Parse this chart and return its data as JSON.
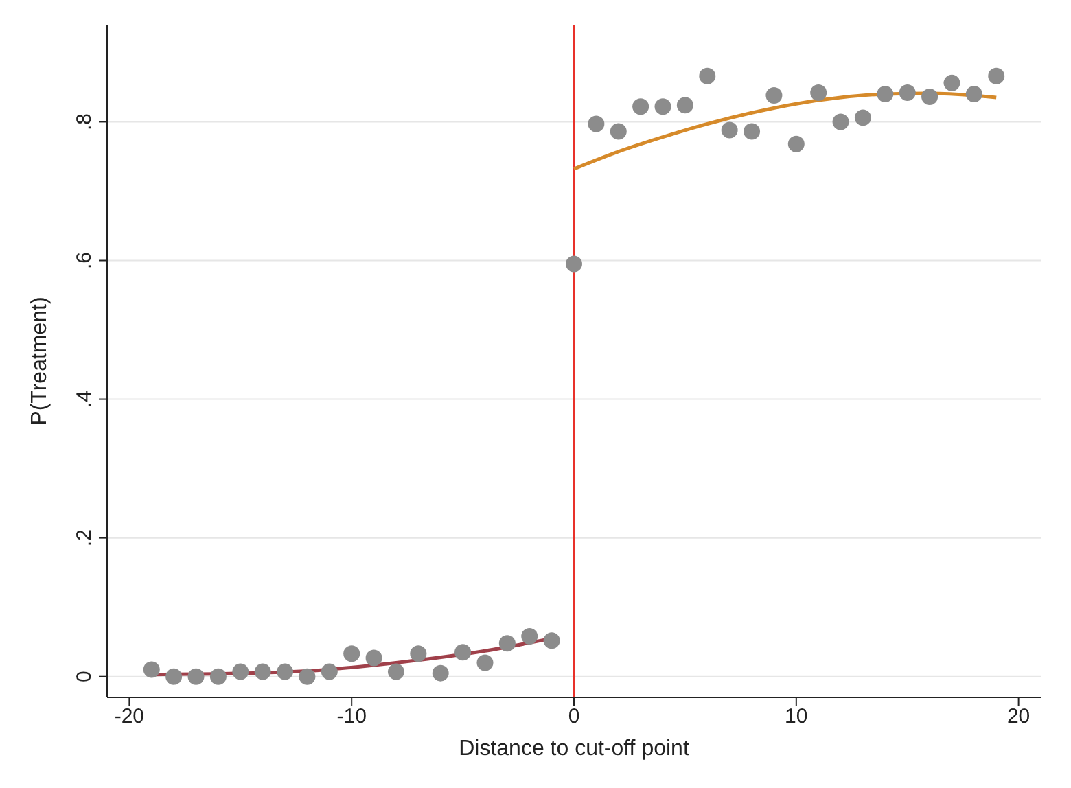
{
  "chart_data": {
    "type": "scatter",
    "xlabel": "Distance to cut-off point",
    "ylabel": "P(Treatment)",
    "xlim": [
      -21,
      21
    ],
    "ylim": [
      -0.03,
      0.94
    ],
    "xticks": [
      -20,
      -10,
      0,
      10,
      20
    ],
    "yticks": [
      0,
      {
        "value": 0.2,
        "label": ".2"
      },
      {
        "value": 0.4,
        "label": ".4"
      },
      {
        "value": 0.6,
        "label": ".6"
      },
      {
        "value": 0.8,
        "label": ".8"
      }
    ],
    "grid": "y",
    "marker": "circle",
    "series": [
      {
        "color": "#8c8c8c",
        "x": [
          -19,
          -18,
          -17,
          -16,
          -15,
          -14,
          -13,
          -12,
          -11,
          -10,
          -9,
          -8,
          -7,
          -6,
          -5,
          -4,
          -3,
          -2,
          -1,
          0,
          1,
          2,
          3,
          4,
          5,
          6,
          7,
          8,
          9,
          10,
          11,
          12,
          13,
          14,
          15,
          16,
          17,
          18,
          19
        ],
        "values": [
          0.01,
          0.0,
          0.0,
          0.0,
          0.007,
          0.007,
          0.007,
          0.0,
          0.007,
          0.033,
          0.027,
          0.007,
          0.033,
          0.005,
          0.035,
          0.02,
          0.048,
          0.058,
          0.052,
          0.595,
          0.797,
          0.786,
          0.822,
          0.822,
          0.824,
          0.866,
          0.788,
          0.786,
          0.838,
          0.768,
          0.842,
          0.8,
          0.806,
          0.84,
          0.842,
          0.836,
          0.856,
          0.84,
          0.866
        ]
      },
      {
        "type": "line",
        "marker": "none",
        "color": "#a0404a",
        "x": [
          -19,
          -16,
          -12,
          -8,
          -4,
          -1
        ],
        "values": [
          0.003,
          0.004,
          0.008,
          0.02,
          0.037,
          0.055
        ]
      },
      {
        "type": "line",
        "marker": "none",
        "color": "#d68a2a",
        "x": [
          0,
          2,
          4,
          6,
          8,
          10,
          12,
          14,
          16,
          18,
          19
        ],
        "values": [
          0.732,
          0.757,
          0.778,
          0.797,
          0.813,
          0.826,
          0.835,
          0.84,
          0.841,
          0.838,
          0.835
        ]
      }
    ],
    "ref_lines": [
      {
        "axis": "x",
        "value": 0,
        "color": "#e8312a"
      }
    ]
  }
}
